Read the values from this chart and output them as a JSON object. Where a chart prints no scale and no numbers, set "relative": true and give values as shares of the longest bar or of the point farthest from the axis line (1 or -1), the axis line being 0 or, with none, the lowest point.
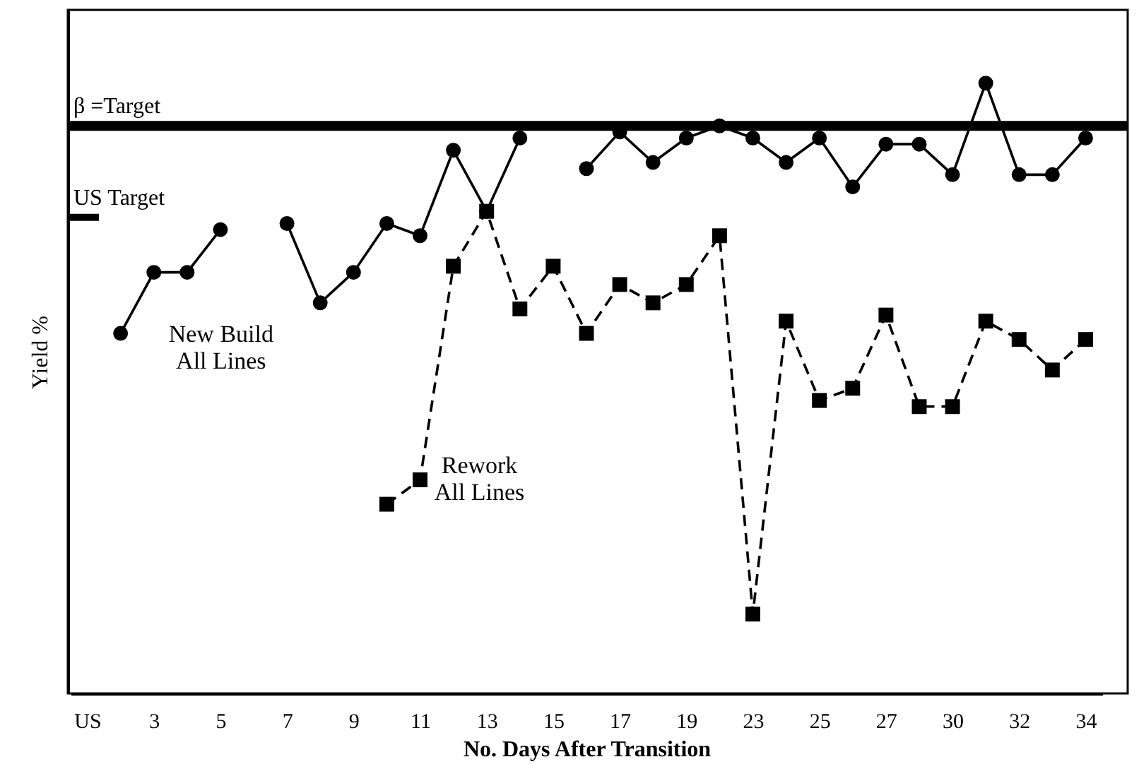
{
  "chart_data": {
    "type": "line",
    "relative": true,
    "xlabel": "No. Days After Transition",
    "ylabel": "Yield %",
    "categories": [
      "US",
      null,
      "3",
      null,
      "5",
      null,
      "7",
      null,
      "9",
      null,
      "11",
      null,
      "13",
      null,
      "15",
      null,
      "17",
      null,
      "19",
      null,
      "23",
      null,
      "25",
      null,
      "27",
      null,
      "30",
      null,
      "32",
      null,
      "34"
    ],
    "series": [
      {
        "name": "New Build\nAll Lines",
        "color": "#000000",
        "marker": "circle",
        "line_style": "solid",
        "values": [
          null,
          0.59,
          0.69,
          0.69,
          0.76,
          null,
          0.77,
          0.64,
          0.69,
          0.77,
          0.75,
          0.89,
          0.79,
          0.91,
          null,
          0.86,
          0.92,
          0.87,
          0.91,
          0.93,
          0.91,
          0.87,
          0.91,
          0.83,
          0.9,
          0.9,
          0.85,
          1,
          0.85,
          0.85,
          0.91
        ]
      },
      {
        "name": "Rework\nAll Lines",
        "color": "#000000",
        "marker": "square",
        "line_style": "dashed",
        "values": [
          null,
          null,
          null,
          null,
          null,
          null,
          null,
          null,
          null,
          0.31,
          0.35,
          0.7,
          0.79,
          0.63,
          0.7,
          0.59,
          0.67,
          0.64,
          0.67,
          0.75,
          0.13,
          0.61,
          0.48,
          0.5,
          0.62,
          0.47,
          0.47,
          0.61,
          0.58,
          0.53,
          0.58
        ]
      }
    ],
    "ref_lines": [
      {
        "axis": "y",
        "value": 0.93,
        "label": "β =Target",
        "color": "#000000",
        "line_style": "solid"
      },
      {
        "axis": "y",
        "value": 0.78,
        "label": "US Target",
        "color": "#000000",
        "line_style": "solid"
      }
    ],
    "grid": false
  }
}
